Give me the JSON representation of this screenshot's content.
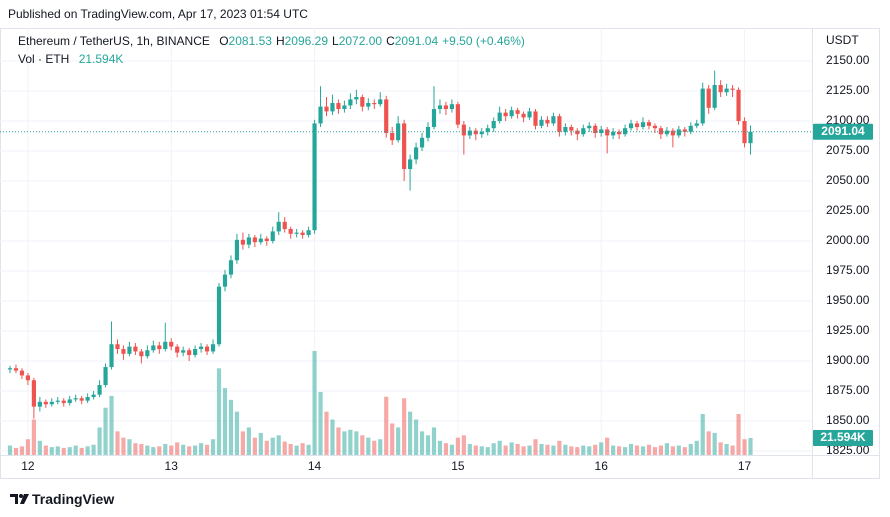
{
  "header": {
    "published": "Published on TradingView.com, Apr 17, 2023 01:54 UTC"
  },
  "chart_data": {
    "type": "candlestick",
    "symbol": "Ethereum / TetherUS, 1h, BINANCE",
    "legend_keys": [
      "O",
      "H",
      "L",
      "C"
    ],
    "last_ohlc_labels": [
      "2081.53",
      "2096.29",
      "2072.00",
      "2091.04"
    ],
    "change": "+9.50 (+0.46%)",
    "volume_title": "Vol · ETH",
    "volume_last_label": "21.594K",
    "currency": "USDT",
    "up_color": "#26a69a",
    "down_color": "#ef5350",
    "open": [
      1893,
      1894,
      1892,
      1888,
      1884,
      1862,
      1866,
      1864,
      1866,
      1867,
      1865,
      1868,
      1869,
      1867,
      1870,
      1872,
      1880,
      1895,
      1914,
      1910,
      1906,
      1912,
      1908,
      1904,
      1909,
      1913,
      1910,
      1916,
      1912,
      1907,
      1909,
      1905,
      1910,
      1912,
      1908,
      1914,
      1962,
      1972,
      1984,
      2001,
      1997,
      2003,
      1999,
      2002,
      2000,
      2008,
      2016,
      2010,
      2006,
      2007,
      2005,
      2009,
      2098,
      2112,
      2108,
      2115,
      2110,
      2113,
      2118,
      2120,
      2112,
      2115,
      2114,
      2118,
      2090,
      2084,
      2098,
      2060,
      2068,
      2078,
      2086,
      2095,
      2110,
      2113,
      2110,
      2114,
      2097,
      2088,
      2092,
      2089,
      2091,
      2094,
      2100,
      2107,
      2104,
      2109,
      2106,
      2103,
      2108,
      2096,
      2101,
      2098,
      2104,
      2091,
      2095,
      2092,
      2089,
      2094,
      2096,
      2090,
      2093,
      2088,
      2091,
      2089,
      2094,
      2098,
      2095,
      2099,
      2096,
      2094,
      2089,
      2092,
      2088,
      2093,
      2091,
      2096,
      2098,
      2127,
      2111,
      2130,
      2124,
      2127,
      2126,
      2100,
      2081.53
    ],
    "high": [
      1896,
      1897,
      1894,
      1890,
      1886,
      1870,
      1868,
      1869,
      1870,
      1869,
      1871,
      1872,
      1871,
      1873,
      1875,
      1884,
      1898,
      1933,
      1918,
      1913,
      1916,
      1915,
      1910,
      1913,
      1917,
      1916,
      1932,
      1919,
      1914,
      1912,
      1911,
      1913,
      1915,
      1914,
      1918,
      1965,
      1976,
      1988,
      2006,
      2007,
      2006,
      2005,
      2006,
      2004,
      2012,
      2024,
      2020,
      2012,
      2010,
      2009,
      2012,
      2101,
      2129,
      2120,
      2122,
      2118,
      2117,
      2123,
      2126,
      2122,
      2119,
      2118,
      2124,
      2121,
      2095,
      2104,
      2101,
      2072,
      2082,
      2090,
      2099,
      2129,
      2118,
      2116,
      2118,
      2116,
      2100,
      2095,
      2094,
      2094,
      2097,
      2103,
      2112,
      2110,
      2112,
      2111,
      2108,
      2111,
      2110,
      2104,
      2104,
      2107,
      2106,
      2098,
      2097,
      2094,
      2097,
      2099,
      2098,
      2096,
      2095,
      2094,
      2093,
      2097,
      2101,
      2100,
      2103,
      2101,
      2098,
      2096,
      2095,
      2094,
      2096,
      2095,
      2099,
      2101,
      2132,
      2130,
      2142,
      2134,
      2131,
      2130,
      2128,
      2103,
      2096.29
    ],
    "low": [
      1890,
      1890,
      1885,
      1880,
      1852,
      1858,
      1861,
      1862,
      1864,
      1862,
      1863,
      1866,
      1864,
      1865,
      1868,
      1870,
      1878,
      1893,
      1906,
      1901,
      1904,
      1905,
      1898,
      1902,
      1907,
      1906,
      1908,
      1909,
      1903,
      1904,
      1900,
      1903,
      1907,
      1905,
      1906,
      1912,
      1958,
      1969,
      1981,
      1993,
      1994,
      1995,
      1997,
      1996,
      1998,
      2005,
      2007,
      2002,
      2003,
      2002,
      2003,
      2006,
      2095,
      2104,
      2105,
      2106,
      2107,
      2110,
      2114,
      2108,
      2109,
      2110,
      2112,
      2086,
      2080,
      2082,
      2050,
      2042,
      2064,
      2075,
      2083,
      2093,
      2106,
      2105,
      2107,
      2094,
      2072,
      2085,
      2084,
      2086,
      2088,
      2091,
      2098,
      2100,
      2102,
      2102,
      2099,
      2101,
      2093,
      2094,
      2095,
      2096,
      2087,
      2088,
      2088,
      2084,
      2087,
      2091,
      2086,
      2087,
      2073,
      2085,
      2085,
      2087,
      2092,
      2092,
      2093,
      2093,
      2090,
      2085,
      2087,
      2078,
      2086,
      2087,
      2089,
      2094,
      2096,
      2106,
      2109,
      2120,
      2121,
      2120,
      2097,
      2078,
      2072
    ],
    "close": [
      1894,
      1892,
      1888,
      1884,
      1862,
      1866,
      1864,
      1866,
      1867,
      1865,
      1868,
      1869,
      1867,
      1870,
      1872,
      1880,
      1895,
      1914,
      1910,
      1906,
      1912,
      1908,
      1904,
      1909,
      1913,
      1910,
      1916,
      1912,
      1907,
      1909,
      1905,
      1910,
      1912,
      1908,
      1914,
      1962,
      1972,
      1984,
      2001,
      1997,
      2003,
      1999,
      2002,
      2000,
      2008,
      2016,
      2010,
      2006,
      2007,
      2005,
      2009,
      2098,
      2112,
      2108,
      2115,
      2110,
      2113,
      2118,
      2120,
      2112,
      2115,
      2114,
      2118,
      2090,
      2084,
      2098,
      2060,
      2068,
      2078,
      2086,
      2095,
      2110,
      2113,
      2110,
      2114,
      2097,
      2088,
      2092,
      2089,
      2091,
      2094,
      2100,
      2107,
      2104,
      2109,
      2106,
      2103,
      2108,
      2096,
      2101,
      2098,
      2104,
      2091,
      2095,
      2092,
      2089,
      2094,
      2096,
      2090,
      2093,
      2088,
      2091,
      2089,
      2094,
      2098,
      2095,
      2099,
      2096,
      2094,
      2089,
      2092,
      2088,
      2093,
      2091,
      2096,
      2098,
      2127,
      2111,
      2130,
      2124,
      2127,
      2126,
      2100,
      2081.53,
      2091.04
    ],
    "volume": [
      12000,
      9000,
      11000,
      20000,
      45000,
      18000,
      12000,
      10000,
      11000,
      9000,
      10000,
      12000,
      9000,
      11000,
      13000,
      35000,
      60000,
      75000,
      30000,
      22000,
      20000,
      15000,
      14000,
      12000,
      10000,
      11000,
      14000,
      12000,
      16000,
      13000,
      11000,
      12000,
      15000,
      13000,
      20000,
      110000,
      85000,
      70000,
      55000,
      30000,
      35000,
      22000,
      28000,
      18000,
      22000,
      25000,
      17000,
      14000,
      12000,
      15000,
      13000,
      132000,
      80000,
      55000,
      45000,
      35000,
      30000,
      32000,
      30000,
      25000,
      22000,
      18000,
      20000,
      74000,
      40000,
      35000,
      72000,
      55000,
      45000,
      30000,
      25000,
      35000,
      18000,
      15000,
      13000,
      22000,
      25000,
      14000,
      12000,
      11000,
      10000,
      15000,
      18000,
      12000,
      16000,
      14000,
      11000,
      12000,
      20000,
      14000,
      13000,
      12000,
      18000,
      13000,
      11000,
      10000,
      12000,
      11000,
      13000,
      16000,
      22000,
      12000,
      11000,
      10000,
      14000,
      12000,
      11000,
      13000,
      10000,
      12000,
      15000,
      11000,
      12000,
      10000,
      14000,
      18000,
      52000,
      30000,
      28000,
      16000,
      14000,
      12000,
      52000,
      20000,
      21594
    ],
    "xlim": [
      -1.675,
      134.3
    ],
    "xticks": [
      {
        "value": 3,
        "label": "12"
      },
      {
        "value": 27,
        "label": "13"
      },
      {
        "value": 51,
        "label": "14"
      },
      {
        "value": 75,
        "label": "15"
      },
      {
        "value": 99,
        "label": "16"
      },
      {
        "value": 123,
        "label": "17"
      }
    ],
    "ylim": [
      1821.7,
      2177.5
    ],
    "yticks": [
      {
        "value": 1825,
        "label": "1825.00"
      },
      {
        "value": 1850,
        "label": "1850.00"
      },
      {
        "value": 1875,
        "label": "1875.00"
      },
      {
        "value": 1900,
        "label": "1900.00"
      },
      {
        "value": 1925,
        "label": "1925.00"
      },
      {
        "value": 1950,
        "label": "1950.00"
      },
      {
        "value": 1975,
        "label": "1975.00"
      },
      {
        "value": 2000,
        "label": "2000.00"
      },
      {
        "value": 2025,
        "label": "2025.00"
      },
      {
        "value": 2050,
        "label": "2050.00"
      },
      {
        "value": 2075,
        "label": "2075.00"
      },
      {
        "value": 2100,
        "label": "2100.00"
      },
      {
        "value": 2125,
        "label": "2125.00"
      },
      {
        "value": 2150,
        "label": "2150.00"
      }
    ],
    "grid": true
  },
  "footer": {
    "brand": "TradingView"
  }
}
